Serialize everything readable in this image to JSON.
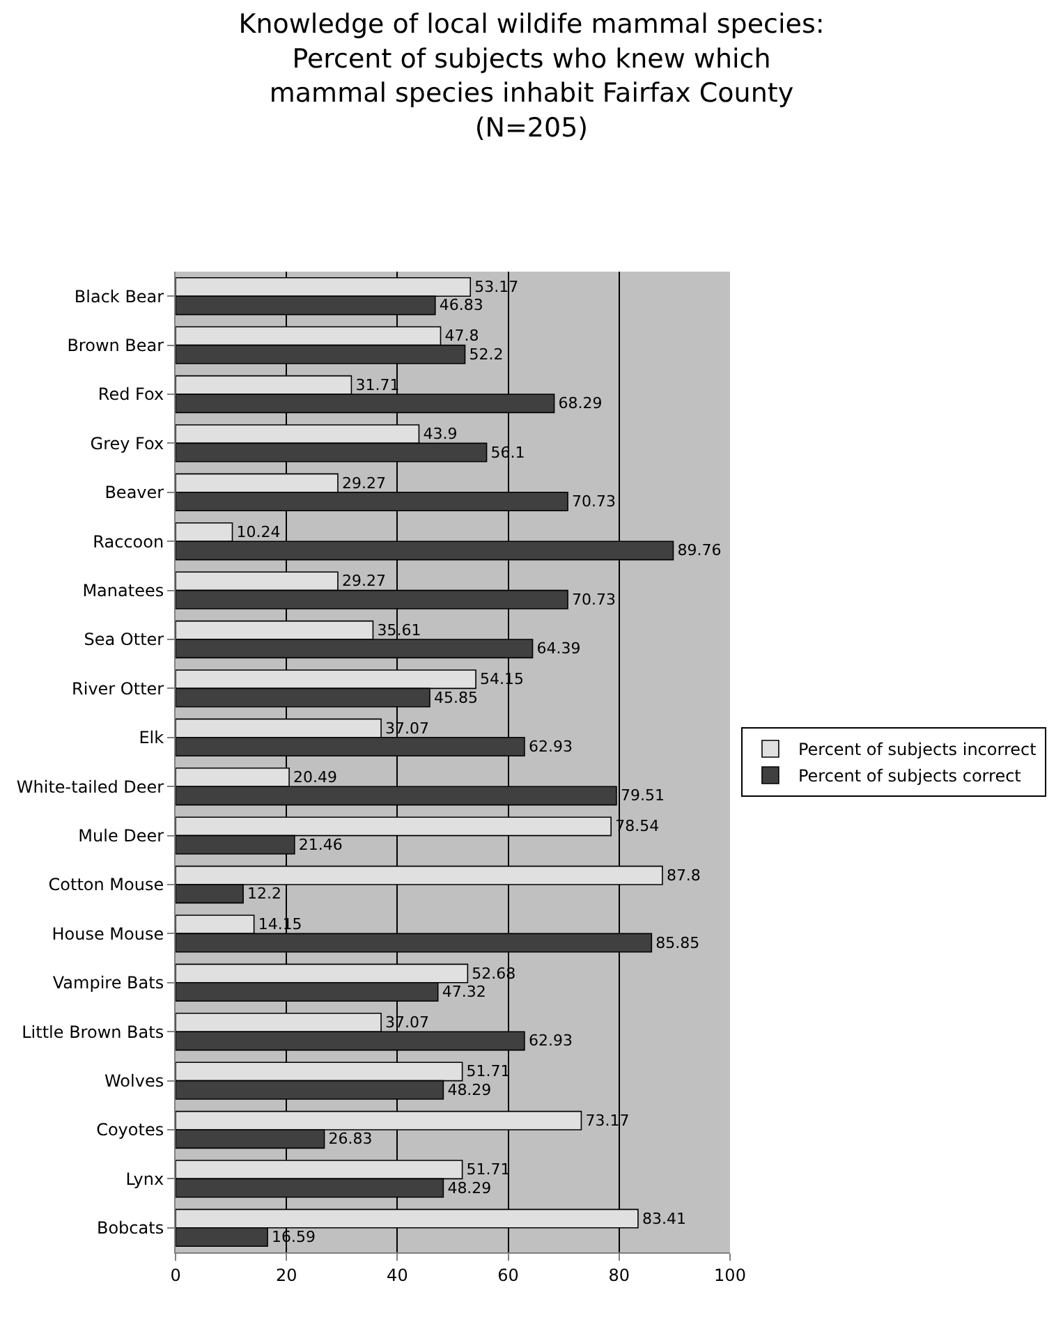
{
  "chart_data": {
    "type": "bar",
    "orientation": "horizontal",
    "title": "Knowledge of local wildife mammal species:\nPercent of subjects who knew which\nmammal species inhabit Fairfax County\n(N=205)",
    "categories": [
      "Black Bear",
      "Brown Bear",
      "Red Fox",
      "Grey Fox",
      "Beaver",
      "Raccoon",
      "Manatees",
      "Sea Otter",
      "River Otter",
      "Elk",
      "White-tailed Deer",
      "Mule Deer",
      "Cotton Mouse",
      "House Mouse",
      "Vampire Bats",
      "Little Brown Bats",
      "Wolves",
      "Coyotes",
      "Lynx",
      "Bobcats"
    ],
    "series": [
      {
        "name": "Percent of subjects incorrect",
        "color": "#e0e0e0",
        "values": [
          53.17,
          47.8,
          31.71,
          43.9,
          29.27,
          10.24,
          29.27,
          35.61,
          54.15,
          37.07,
          20.49,
          78.54,
          87.8,
          14.15,
          52.68,
          37.07,
          51.71,
          73.17,
          51.71,
          83.41
        ]
      },
      {
        "name": "Percent of subjects correct",
        "color": "#404040",
        "values": [
          46.83,
          52.2,
          68.29,
          56.1,
          70.73,
          89.76,
          70.73,
          64.39,
          45.85,
          62.93,
          79.51,
          21.46,
          12.2,
          85.85,
          47.32,
          62.93,
          48.29,
          26.83,
          48.29,
          16.59
        ]
      }
    ],
    "xlim": [
      0,
      100
    ],
    "xticks": [
      0,
      20,
      40,
      60,
      80,
      100
    ],
    "grid": "x",
    "legend": "right",
    "data_labels": true
  }
}
